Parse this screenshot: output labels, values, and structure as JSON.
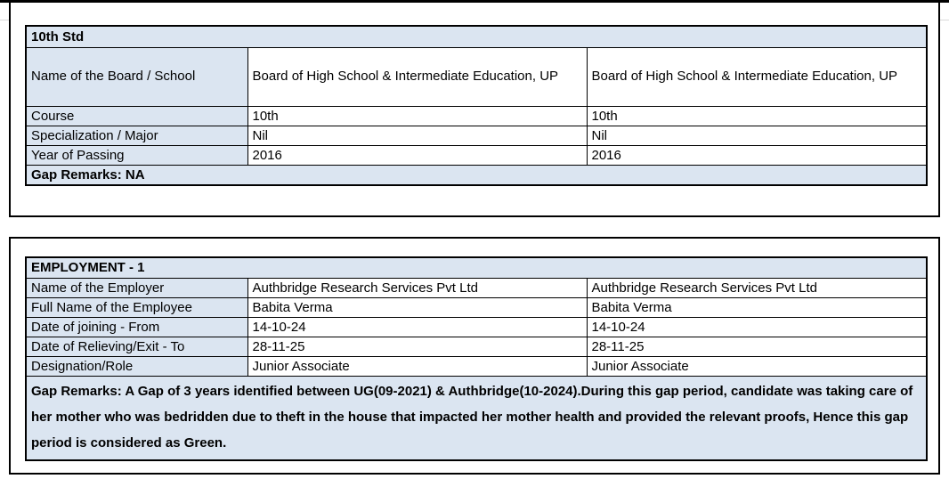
{
  "page": {
    "background_color": "#ffffff",
    "accent_fill_color": "#dbe5f1",
    "border_color": "#000000"
  },
  "education_section": {
    "title": "10th Std",
    "rows": [
      {
        "label": "Name of the Board / School",
        "values": [
          "Board of High School & Intermediate Education, UP",
          "Board of High School & Intermediate Education, UP"
        ]
      },
      {
        "label": "Course",
        "values": [
          "10th",
          "10th"
        ]
      },
      {
        "label": "Specialization / Major",
        "values": [
          "Nil",
          "Nil"
        ]
      },
      {
        "label": "Year of Passing",
        "values": [
          "2016",
          "2016"
        ]
      }
    ],
    "gap_remarks": "Gap Remarks: NA"
  },
  "employment_section": {
    "title": "EMPLOYMENT - 1",
    "rows": [
      {
        "label": "Name of the Employer",
        "values": [
          "Authbridge Research Services Pvt Ltd",
          "Authbridge Research Services Pvt Ltd"
        ]
      },
      {
        "label": "Full Name of the Employee",
        "values": [
          "Babita Verma",
          "Babita Verma"
        ]
      },
      {
        "label": "Date of joining - From",
        "values": [
          "14-10-24",
          "14-10-24"
        ]
      },
      {
        "label": "Date of Relieving/Exit - To",
        "values": [
          "28-11-25",
          "28-11-25"
        ]
      },
      {
        "label": "Designation/Role",
        "values": [
          "Junior Associate",
          "Junior Associate"
        ]
      }
    ],
    "gap_remarks": "Gap Remarks: A Gap of 3 years identified between UG(09-2021) & Authbridge(10-2024).During this gap period, candidate was taking care of her mother who was bedridden due to theft in the house that impacted her mother health and provided the relevant proofs, Hence this gap period is considered as Green."
  }
}
